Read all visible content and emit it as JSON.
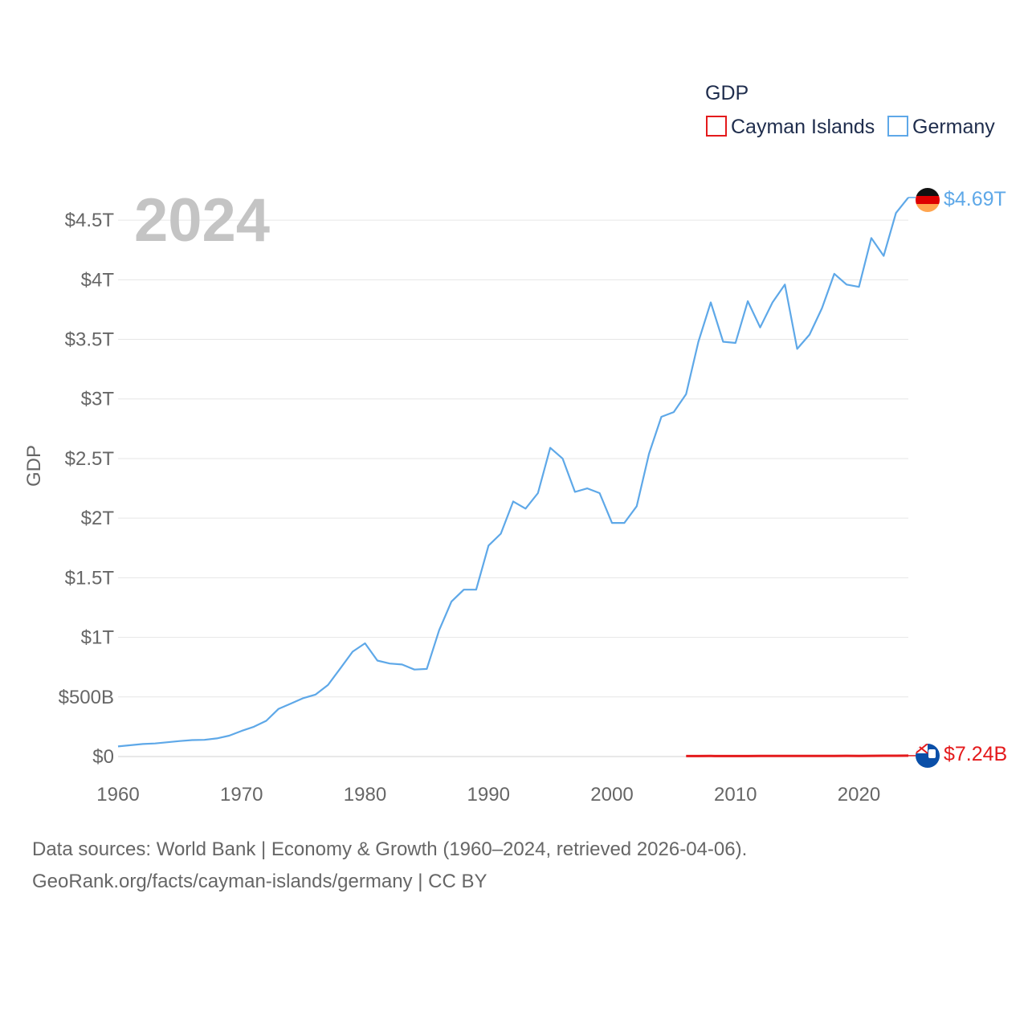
{
  "chart_data": {
    "type": "line",
    "year": "2024",
    "ylabel": "GDP",
    "legend": {
      "title": "GDP",
      "entries": [
        {
          "name": "Cayman Islands",
          "color": "#e41a1c"
        },
        {
          "name": "Germany",
          "color": "#5ea8e8"
        }
      ],
      "placement": "top-right"
    },
    "xlim": [
      1960,
      2024
    ],
    "ylim": [
      0,
      4750000000000.0
    ],
    "x_ticks": [
      1960,
      1970,
      1980,
      1990,
      2000,
      2010,
      2020
    ],
    "y_ticks": [
      {
        "value": 0,
        "label": "$0"
      },
      {
        "value": 500000000000.0,
        "label": "$500B"
      },
      {
        "value": 1000000000000.0,
        "label": "$1T"
      },
      {
        "value": 1500000000000.0,
        "label": "$1.5T"
      },
      {
        "value": 2000000000000.0,
        "label": "$2T"
      },
      {
        "value": 2500000000000.0,
        "label": "$2.5T"
      },
      {
        "value": 3000000000000.0,
        "label": "$3T"
      },
      {
        "value": 3500000000000.0,
        "label": "$3.5T"
      },
      {
        "value": 4000000000000.0,
        "label": "$4T"
      },
      {
        "value": 4500000000000.0,
        "label": "$4.5T"
      }
    ],
    "series": [
      {
        "name": "Germany",
        "color": "#5ea8e8",
        "end_label": "$4.69T",
        "x": [
          1960,
          1961,
          1962,
          1963,
          1964,
          1965,
          1966,
          1967,
          1968,
          1969,
          1970,
          1971,
          1972,
          1973,
          1974,
          1975,
          1976,
          1977,
          1978,
          1979,
          1980,
          1981,
          1982,
          1983,
          1984,
          1985,
          1986,
          1987,
          1988,
          1989,
          1990,
          1991,
          1992,
          1993,
          1994,
          1995,
          1996,
          1997,
          1998,
          1999,
          2000,
          2001,
          2002,
          2003,
          2004,
          2005,
          2006,
          2007,
          2008,
          2009,
          2010,
          2011,
          2012,
          2013,
          2014,
          2015,
          2016,
          2017,
          2018,
          2019,
          2020,
          2021,
          2022,
          2023,
          2024
        ],
        "values": [
          85000000000.0,
          95000000000.0,
          105000000000.0,
          110000000000.0,
          120000000000.0,
          130000000000.0,
          138000000000.0,
          140000000000.0,
          152000000000.0,
          175000000000.0,
          215000000000.0,
          250000000000.0,
          300000000000.0,
          400000000000.0,
          445000000000.0,
          490000000000.0,
          520000000000.0,
          600000000000.0,
          740000000000.0,
          880000000000.0,
          950000000000.0,
          805000000000.0,
          780000000000.0,
          772000000000.0,
          730000000000.0,
          735000000000.0,
          1060000000000.0,
          1300000000000.0,
          1400000000000.0,
          1400000000000.0,
          1770000000000.0,
          1870000000000.0,
          2140000000000.0,
          2080000000000.0,
          2210000000000.0,
          2590000000000.0,
          2500000000000.0,
          2220000000000.0,
          2250000000000.0,
          2210000000000.0,
          1960000000000.0,
          1960000000000.0,
          2100000000000.0,
          2540000000000.0,
          2850000000000.0,
          2890000000000.0,
          3040000000000.0,
          3480000000000.0,
          3810000000000.0,
          3480000000000.0,
          3470000000000.0,
          3820000000000.0,
          3600000000000.0,
          3810000000000.0,
          3960000000000.0,
          3420000000000.0,
          3540000000000.0,
          3760000000000.0,
          4050000000000.0,
          3960000000000.0,
          3940000000000.0,
          4350000000000.0,
          4200000000000.0,
          4560000000000.0,
          4690000000000.0
        ]
      },
      {
        "name": "Cayman Islands",
        "color": "#e41a1c",
        "end_label": "$7.24B",
        "x": [
          2006,
          2007,
          2008,
          2009,
          2010,
          2011,
          2012,
          2013,
          2014,
          2015,
          2016,
          2017,
          2018,
          2019,
          2020,
          2021,
          2022,
          2023,
          2024
        ],
        "values": [
          3900000000.0,
          4100000000.0,
          4400000000.0,
          4200000000.0,
          4200000000.0,
          4300000000.0,
          4400000000.0,
          4500000000.0,
          4600000000.0,
          4800000000.0,
          5000000000.0,
          5300000000.0,
          5600000000.0,
          5900000000.0,
          5700000000.0,
          6000000000.0,
          6500000000.0,
          6900000000.0,
          7240000000.0
        ]
      }
    ]
  },
  "footer": {
    "line1": "Data sources: World Bank | Economy & Growth (1960–2024, retrieved 2026-04-06).",
    "line2": "GeoRank.org/facts/cayman-islands/germany | CC BY"
  }
}
